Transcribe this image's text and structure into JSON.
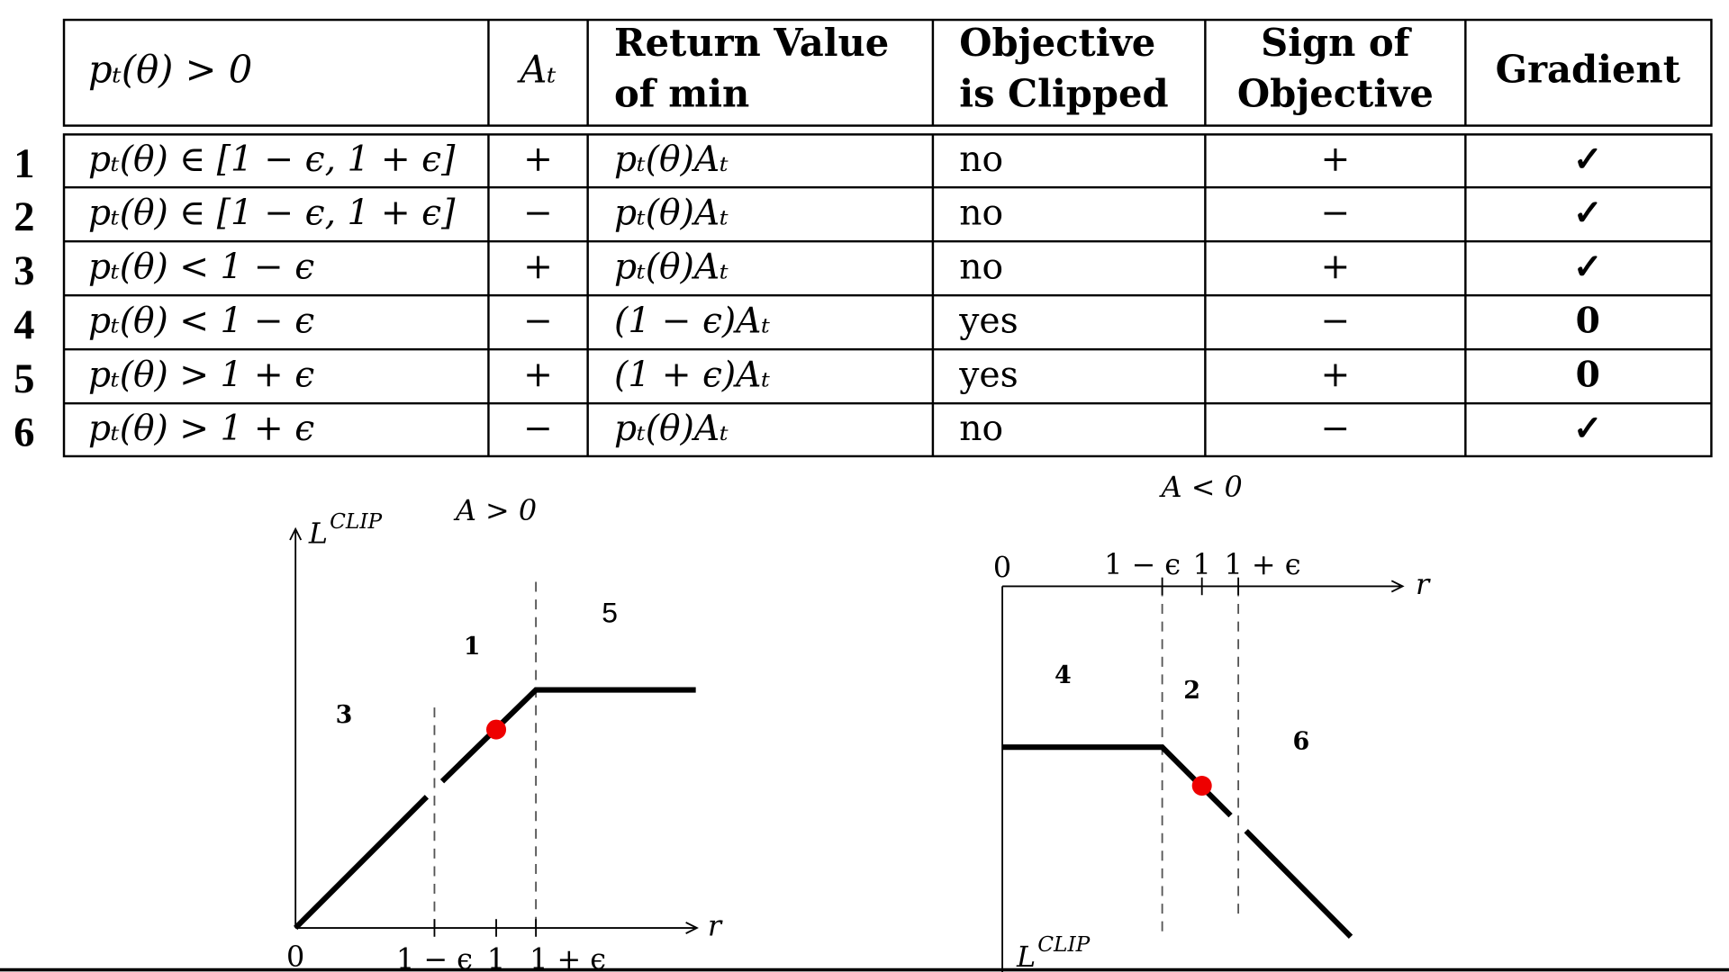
{
  "table": {
    "header": [
      {
        "lines": [
          "pₜ(θ)  > 0"
        ]
      },
      {
        "lines": [
          "Aₜ"
        ]
      },
      {
        "lines": [
          "Return Value",
          "of min"
        ]
      },
      {
        "lines": [
          "Objective",
          "is Clipped"
        ]
      },
      {
        "lines": [
          "Sign of",
          "Objective"
        ]
      },
      {
        "lines": [
          "Gradient"
        ]
      }
    ],
    "rows": [
      {
        "number": "1",
        "cells": [
          "pₜ(θ) ∈ [1 − ϵ, 1 + ϵ]",
          "+",
          "pₜ(θ)Aₜ",
          "no",
          "+",
          "✓"
        ]
      },
      {
        "number": "2",
        "cells": [
          "pₜ(θ) ∈ [1 − ϵ, 1 + ϵ]",
          "−",
          "pₜ(θ)Aₜ",
          "no",
          "−",
          "✓"
        ]
      },
      {
        "number": "3",
        "cells": [
          "pₜ(θ) < 1 − ϵ",
          "+",
          "pₜ(θ)Aₜ",
          "no",
          "+",
          "✓"
        ]
      },
      {
        "number": "4",
        "cells": [
          "pₜ(θ) < 1 − ϵ",
          "−",
          "(1 − ϵ)Aₜ",
          "yes",
          "−",
          "0"
        ]
      },
      {
        "number": "5",
        "cells": [
          "pₜ(θ) > 1 + ϵ",
          "+",
          "(1 + ϵ)Aₜ",
          "yes",
          "+",
          "0"
        ]
      },
      {
        "number": "6",
        "cells": [
          "pₜ(θ) > 1 + ϵ",
          "−",
          "pₜ(θ)Aₜ",
          "no",
          "−",
          "✓"
        ]
      }
    ]
  },
  "plots": [
    {
      "title": "A > 0",
      "y_label": {
        "base": "L",
        "sup": "CLIP"
      },
      "x_label": "r",
      "origin": "0",
      "ticks": [
        "1 − ϵ",
        "1",
        "1 + ϵ"
      ],
      "regions": [
        "3",
        "1",
        "5"
      ]
    },
    {
      "title": "A < 0",
      "y_label": {
        "base": "L",
        "sup": "CLIP"
      },
      "x_label": "r",
      "origin": "0",
      "ticks": [
        "1 − ϵ",
        "1",
        "1 + ϵ"
      ],
      "regions": [
        "4",
        "2",
        "6"
      ]
    }
  ]
}
